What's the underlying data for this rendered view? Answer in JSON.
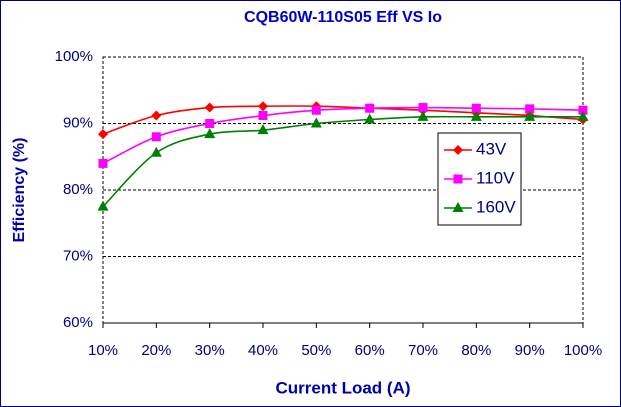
{
  "chart_data": {
    "type": "line",
    "title": "CQB60W-110S05 Eff VS Io",
    "xlabel": "Current Load (A)",
    "ylabel": "Efficiency (%)",
    "x": [
      10,
      20,
      30,
      40,
      50,
      60,
      70,
      80,
      90,
      100
    ],
    "series": [
      {
        "name": "43V",
        "color": "#ff0000",
        "marker": "diamond",
        "values": [
          88.4,
          91.2,
          92.4,
          92.6,
          92.6,
          92.3,
          92.0,
          91.6,
          91.2,
          90.6
        ]
      },
      {
        "name": "110V",
        "color": "#ff00ff",
        "marker": "square",
        "values": [
          84.0,
          88.0,
          90.0,
          91.2,
          92.0,
          92.3,
          92.4,
          92.3,
          92.2,
          92.0
        ]
      },
      {
        "name": "160V",
        "color": "#008000",
        "marker": "triangle",
        "values": [
          77.5,
          85.6,
          88.4,
          89.0,
          90.0,
          90.6,
          91.0,
          91.0,
          91.0,
          91.0
        ]
      }
    ],
    "xlim": [
      10,
      100
    ],
    "xticks": [
      {
        "value": 10,
        "label": "10%"
      },
      {
        "value": 20,
        "label": "20%"
      },
      {
        "value": 30,
        "label": "30%"
      },
      {
        "value": 40,
        "label": "40%"
      },
      {
        "value": 50,
        "label": "50%"
      },
      {
        "value": 60,
        "label": "60%"
      },
      {
        "value": 70,
        "label": "70%"
      },
      {
        "value": 80,
        "label": "80%"
      },
      {
        "value": 90,
        "label": "90%"
      },
      {
        "value": 100,
        "label": "100%"
      }
    ],
    "ylim": [
      60,
      100
    ],
    "yticks": [
      {
        "value": 60,
        "label": "60%"
      },
      {
        "value": 70,
        "label": "70%"
      },
      {
        "value": 80,
        "label": "80%"
      },
      {
        "value": 90,
        "label": "90%"
      },
      {
        "value": 100,
        "label": "100%"
      }
    ],
    "grid": true,
    "legend": "right"
  }
}
